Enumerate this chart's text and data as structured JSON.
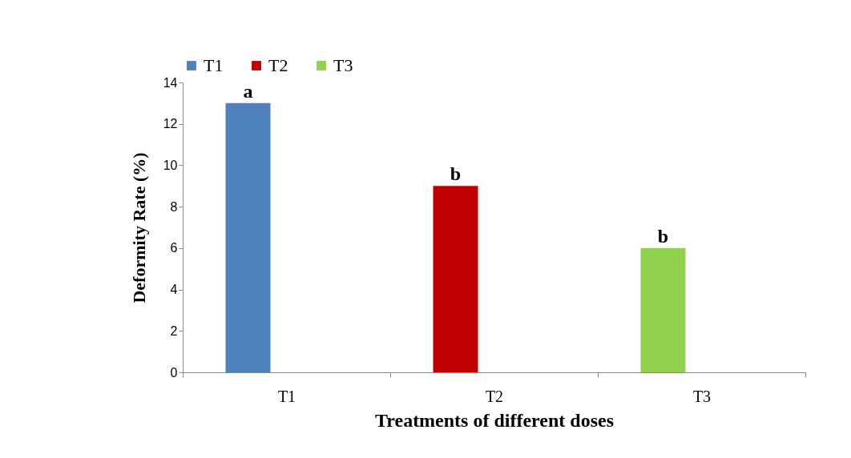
{
  "chart_data": {
    "type": "bar",
    "xlabel": "Treatments of different doses",
    "ylabel": "Deformity Rate (%)",
    "categories": [
      "T1",
      "T2",
      "T3"
    ],
    "series": [
      {
        "name": "T1",
        "color": "#4f81bd",
        "values": [
          13,
          null,
          null
        ]
      },
      {
        "name": "T2",
        "color": "#c00000",
        "values": [
          null,
          9,
          null
        ]
      },
      {
        "name": "T3",
        "color": "#92d050",
        "values": [
          null,
          null,
          6
        ]
      }
    ],
    "ylim": [
      0,
      14
    ],
    "yticks": [
      0,
      2,
      4,
      6,
      8,
      10,
      12,
      14
    ],
    "grid": false,
    "legend": "top",
    "annotations": [
      "a",
      "b",
      "b"
    ]
  }
}
